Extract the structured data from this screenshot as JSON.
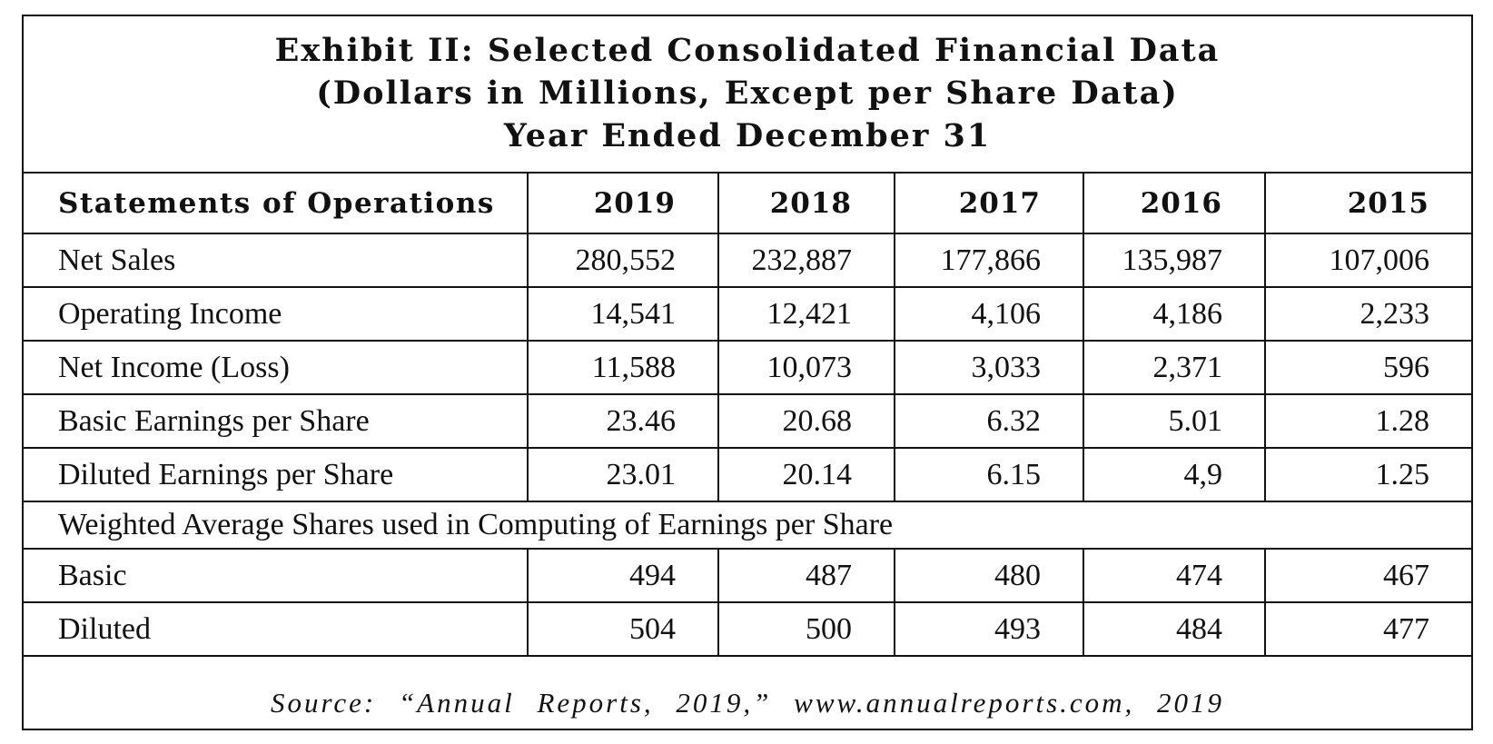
{
  "title": {
    "line1": "Exhibit II: Selected Consolidated Financial Data",
    "line2": "(Dollars in Millions, Except per Share Data)",
    "line3": "Year Ended December 31"
  },
  "table": {
    "header": [
      "Statements of Operations",
      "2019",
      "2018",
      "2017",
      "2016",
      "2015"
    ],
    "rows": [
      [
        "Net Sales",
        "280,552",
        "232,887",
        "177,866",
        "135,987",
        "107,006"
      ],
      [
        "Operating Income",
        "14,541",
        "12,421",
        "4,106",
        "4,186",
        "2,233"
      ],
      [
        "Net Income (Loss)",
        "11,588",
        "10,073",
        "3,033",
        "2,371",
        "596"
      ],
      [
        "Basic Earnings per Share",
        "23.46",
        "20.68",
        "6.32",
        "5.01",
        "1.28"
      ],
      [
        "Diluted Earnings per Share",
        "23.01",
        "20.14",
        "6.15",
        "4,9",
        "1.25"
      ]
    ],
    "section_label": "Weighted Average Shares used in Computing of Earnings per Share",
    "share_rows": [
      [
        "Basic",
        "494",
        "487",
        "480",
        "474",
        "467"
      ],
      [
        "Diluted",
        "504",
        "500",
        "493",
        "484",
        "477"
      ]
    ]
  },
  "source": "Source: “Annual Reports, 2019,” www.annualreports.com, 2019"
}
